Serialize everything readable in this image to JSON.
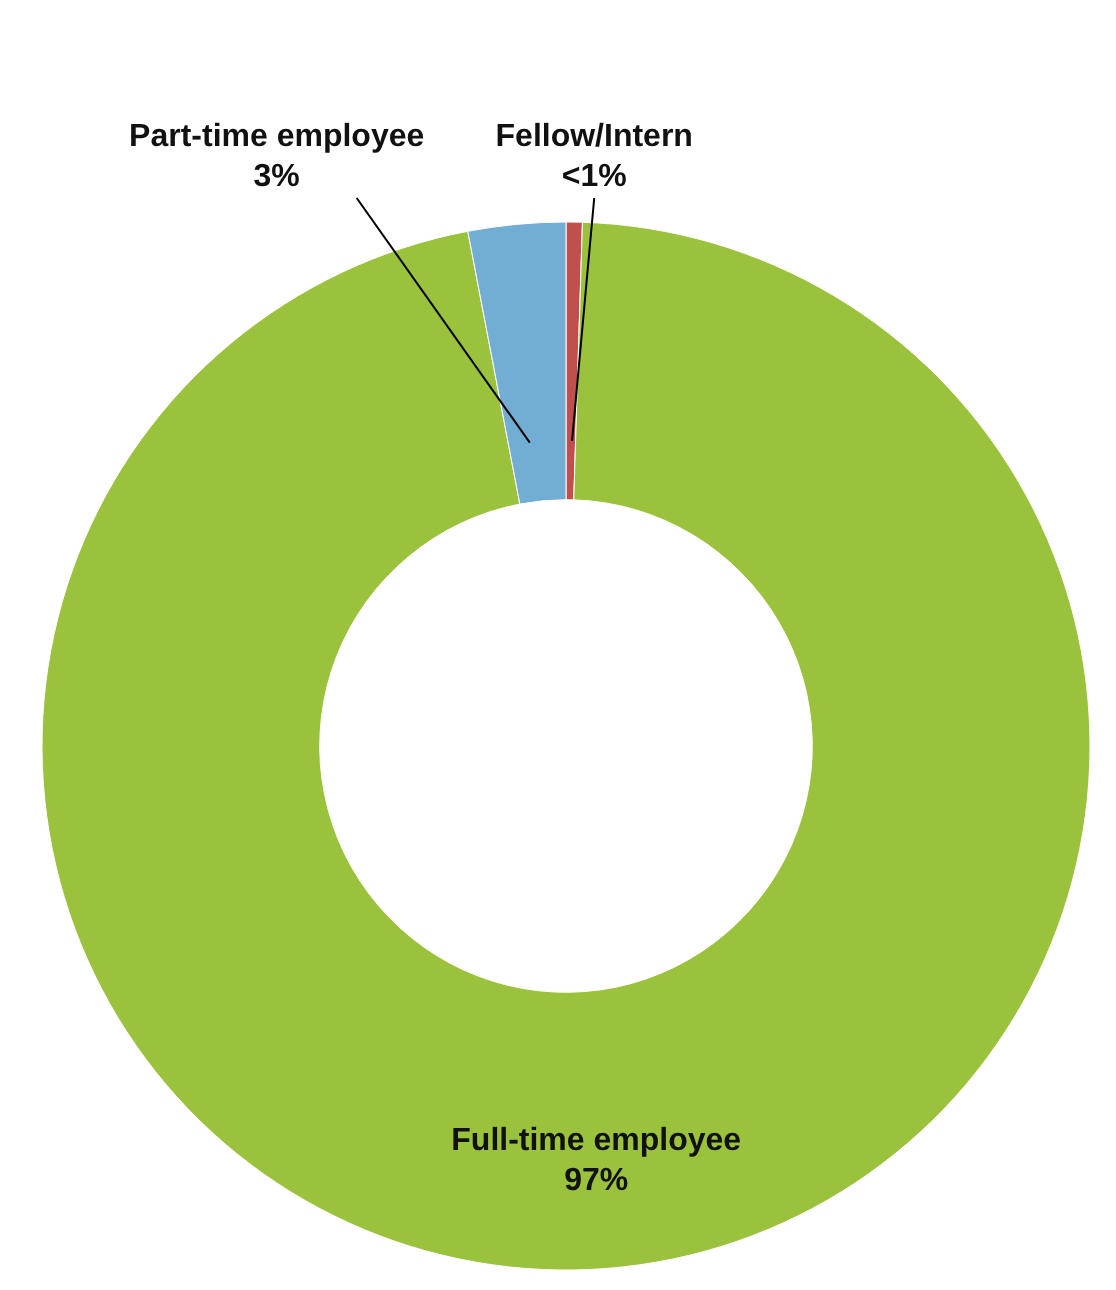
{
  "chart_data": {
    "type": "donut",
    "categories": [
      "Fellow/Intern",
      "Full-time employee",
      "Part-time employee"
    ],
    "values": [
      0.5,
      96.5,
      3
    ],
    "value_labels": [
      "<1%",
      "97%",
      "3%"
    ],
    "colors": [
      "#c0504d",
      "#9bc23c",
      "#72aed4"
    ]
  }
}
